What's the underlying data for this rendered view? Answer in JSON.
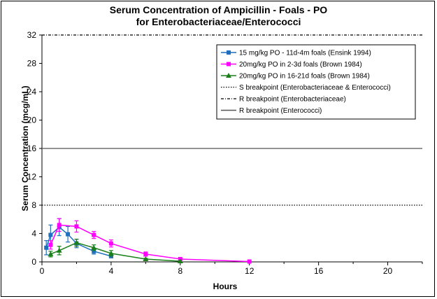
{
  "colors": {
    "blue": "#1f6fbf",
    "magenta": "#ff00ff",
    "green": "#1a7f1a",
    "black": "#000000",
    "gray": "#555555"
  },
  "chart_data": {
    "type": "line",
    "title": "Serum Concentration of Ampicillin  - Foals - PO",
    "subtitle": "for Enterobacteriaceae/Enterococci",
    "xlabel": "Hours",
    "ylabel": "Serum Concentration (mcg/mL)",
    "xlim": [
      0,
      22
    ],
    "ylim": [
      0,
      32
    ],
    "xticks": [
      0,
      4,
      8,
      12,
      16,
      20
    ],
    "yticks": [
      0,
      4,
      8,
      12,
      16,
      20,
      24,
      28,
      32
    ],
    "grid": false,
    "legend_position": "top-right",
    "series": [
      {
        "name": "15 mg/kg PO - 11d-4m foals (Ensink 1994)",
        "color": "#1f6fbf",
        "marker": "square",
        "x": [
          0.25,
          0.5,
          1,
          1.5,
          2,
          3,
          4
        ],
        "y": [
          2.0,
          3.8,
          4.9,
          3.9,
          2.6,
          1.5,
          0.8
        ],
        "err": [
          1.0,
          1.4,
          1.2,
          1.1,
          0.6,
          0.4,
          0.2
        ]
      },
      {
        "name": "20mg/kg PO in 2-3d foals (Brown 1984)",
        "color": "#ff00ff",
        "marker": "square",
        "x": [
          0.5,
          1,
          2,
          3,
          4,
          6,
          8,
          12
        ],
        "y": [
          2.4,
          5.2,
          5.0,
          3.8,
          2.6,
          1.1,
          0.4,
          0.05
        ],
        "err": [
          0.6,
          0.9,
          0.8,
          0.5,
          0.5,
          0.3,
          0.1,
          0.05
        ]
      },
      {
        "name": "20mg/kg PO in 16-21d foals (Brown 1984)",
        "color": "#1a7f1a",
        "marker": "triangle",
        "x": [
          0.5,
          1,
          2,
          3,
          4,
          6,
          8
        ],
        "y": [
          1.1,
          1.6,
          2.7,
          2.0,
          1.2,
          0.4,
          0.1
        ],
        "err": [
          0.4,
          0.6,
          0.5,
          0.4,
          0.4,
          0.1,
          0.05
        ]
      }
    ],
    "reference_lines": [
      {
        "name": "S breakpoint (Enterobacteriaceae & Enterococci)",
        "y": 8,
        "style": "dotted"
      },
      {
        "name": "R breakpoint (Enterobacteriaceae)",
        "y": 32,
        "style": "dashdot"
      },
      {
        "name": "R breakpoint (Enterococci)",
        "y": 16,
        "style": "solid"
      }
    ]
  }
}
